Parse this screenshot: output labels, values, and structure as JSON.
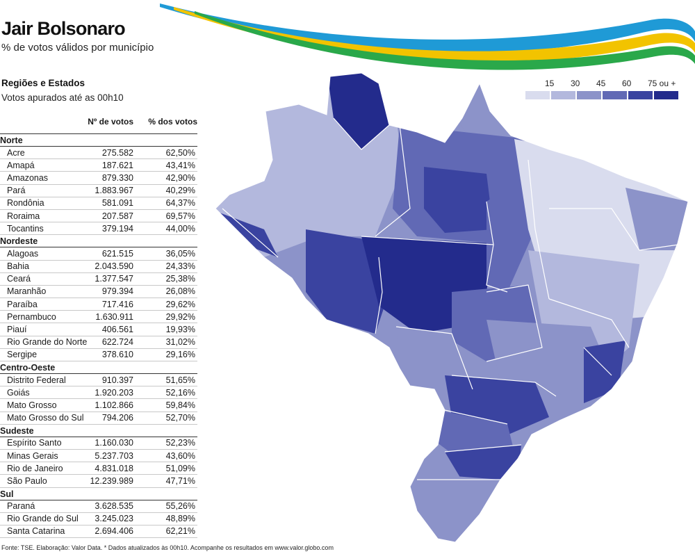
{
  "header": {
    "title": "Jair Bolsonaro",
    "subtitle": "% de votos válidos por município"
  },
  "table_section": {
    "title": "Regiões e Estados",
    "subtitle": "Votos apurados até as 00h10",
    "col_votes": "Nº de votos",
    "col_pct": "% dos votos",
    "regions": [
      {
        "name": "Norte",
        "states": [
          {
            "name": "Acre",
            "votes": "275.582",
            "pct": "62,50%"
          },
          {
            "name": "Amapá",
            "votes": "187.621",
            "pct": "43,41%"
          },
          {
            "name": "Amazonas",
            "votes": "879.330",
            "pct": "42,90%"
          },
          {
            "name": "Pará",
            "votes": "1.883.967",
            "pct": "40,29%"
          },
          {
            "name": "Rondônia",
            "votes": "581.091",
            "pct": "64,37%"
          },
          {
            "name": "Roraima",
            "votes": "207.587",
            "pct": "69,57%"
          },
          {
            "name": "Tocantins",
            "votes": "379.194",
            "pct": "44,00%"
          }
        ]
      },
      {
        "name": "Nordeste",
        "states": [
          {
            "name": "Alagoas",
            "votes": "621.515",
            "pct": "36,05%"
          },
          {
            "name": "Bahia",
            "votes": "2.043.590",
            "pct": "24,33%"
          },
          {
            "name": "Ceará",
            "votes": "1.377.547",
            "pct": "25,38%"
          },
          {
            "name": "Maranhão",
            "votes": "979.394",
            "pct": "26,08%"
          },
          {
            "name": "Paraíba",
            "votes": "717.416",
            "pct": "29,62%"
          },
          {
            "name": "Pernambuco",
            "votes": "1.630.911",
            "pct": "29,92%"
          },
          {
            "name": "Piauí",
            "votes": "406.561",
            "pct": "19,93%"
          },
          {
            "name": "Rio Grande do Norte",
            "votes": "622.724",
            "pct": "31,02%"
          },
          {
            "name": "Sergipe",
            "votes": "378.610",
            "pct": "29,16%"
          }
        ]
      },
      {
        "name": "Centro-Oeste",
        "states": [
          {
            "name": "Distrito Federal",
            "votes": "910.397",
            "pct": "51,65%"
          },
          {
            "name": "Goiás",
            "votes": "1.920.203",
            "pct": "52,16%"
          },
          {
            "name": "Mato Grosso",
            "votes": "1.102.866",
            "pct": "59,84%"
          },
          {
            "name": "Mato Grosso do Sul",
            "votes": "794.206",
            "pct": "52,70%"
          }
        ]
      },
      {
        "name": "Sudeste",
        "states": [
          {
            "name": "Espírito Santo",
            "votes": "1.160.030",
            "pct": "52,23%"
          },
          {
            "name": "Minas Gerais",
            "votes": "5.237.703",
            "pct": "43,60%"
          },
          {
            "name": "Rio de Janeiro",
            "votes": "4.831.018",
            "pct": "51,09%"
          },
          {
            "name": "São Paulo",
            "votes": "12.239.989",
            "pct": "47,71%"
          }
        ]
      },
      {
        "name": "Sul",
        "states": [
          {
            "name": "Paraná",
            "votes": "3.628.535",
            "pct": "55,26%"
          },
          {
            "name": "Rio Grande do Sul",
            "votes": "3.245.023",
            "pct": "48,89%"
          },
          {
            "name": "Santa Catarina",
            "votes": "2.694.406",
            "pct": "62,21%"
          }
        ]
      }
    ]
  },
  "legend": {
    "labels": [
      "15",
      "30",
      "45",
      "60",
      "75 ou +"
    ],
    "colors": [
      "#d9dcee",
      "#b3b8dd",
      "#8c93c9",
      "#6169b5",
      "#3a43a0",
      "#232b8c"
    ]
  },
  "map": {
    "colors": {
      "very_light": "#d9dcee",
      "light": "#b3b8dd",
      "mid_light": "#8c93c9",
      "mid": "#6169b5",
      "dark": "#3a43a0",
      "darkest": "#232b8c"
    }
  },
  "decor": {
    "swoosh_colors": [
      "#1f9ad6",
      "#f2c300",
      "#2aa84a"
    ]
  },
  "footer": {
    "source": "Fonte: TSE. Elaboração: Valor Data. * Dados atualizados às 00h10. Acompanhe os resultados em www.valor.globo.com"
  }
}
